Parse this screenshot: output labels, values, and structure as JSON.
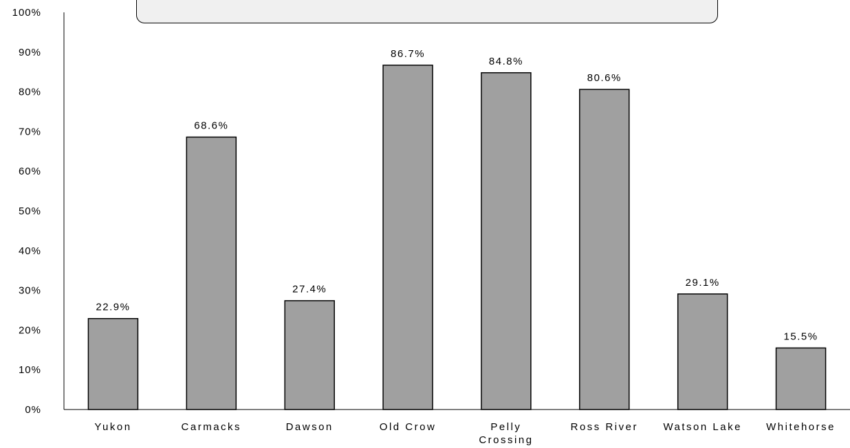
{
  "chart_data": {
    "type": "bar",
    "title": "",
    "xlabel": "",
    "ylabel": "",
    "ylim": [
      0,
      100
    ],
    "yticks": [
      "0%",
      "10%",
      "20%",
      "30%",
      "40%",
      "50%",
      "60%",
      "70%",
      "80%",
      "90%",
      "100%"
    ],
    "categories": [
      "Yukon",
      "Carmacks",
      "Dawson",
      "Old Crow",
      "Pelly Crossing",
      "Ross River",
      "Watson Lake",
      "Whitehorse"
    ],
    "values": [
      22.9,
      68.6,
      27.4,
      86.7,
      84.8,
      80.6,
      29.1,
      15.5
    ],
    "value_labels": [
      "22.9%",
      "68.6%",
      "27.4%",
      "86.7%",
      "84.8%",
      "80.6%",
      "29.1%",
      "15.5%"
    ],
    "bar_color": "#a0a0a0",
    "grid": false,
    "legend": "none"
  }
}
